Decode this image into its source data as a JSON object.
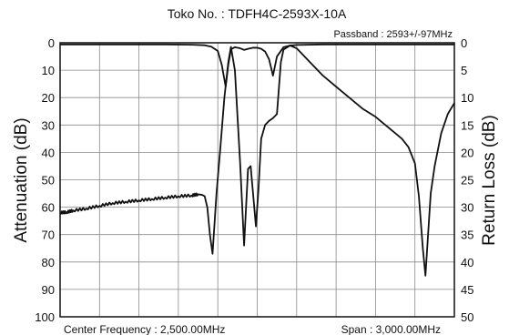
{
  "chart_data": {
    "type": "line",
    "title": "Toko No. : TDFH4C-2593X-10A",
    "subtitle": "Passband : 2593+/-97MHz",
    "ylabel_left": "Attenuation (dB)",
    "ylabel_right": "Return Loss (dB)",
    "footer_left": "Center Frequency : 2,500.00MHz",
    "footer_right": "Span : 3,000.00MHz",
    "grid": true,
    "x_range_mhz": [
      1000,
      4000
    ],
    "ylim_left": [
      0,
      100
    ],
    "ylim_right": [
      0,
      50
    ],
    "left_ticks": [
      "0",
      "10",
      "20",
      "30",
      "40",
      "50",
      "60",
      "70",
      "80",
      "90",
      "100"
    ],
    "right_ticks": [
      "0",
      "5",
      "10",
      "15",
      "20",
      "25",
      "30",
      "35",
      "40",
      "45",
      "50"
    ],
    "series": [
      {
        "axis": "left",
        "color": "#111111",
        "x": [
          1000,
          1050,
          1100,
          1200,
          1300,
          1400,
          1500,
          1600,
          1700,
          1800,
          1900,
          2000,
          2050,
          2080,
          2100,
          2120,
          2140,
          2160,
          2190,
          2220,
          2250,
          2280,
          2300,
          2330,
          2370,
          2400,
          2430,
          2450,
          2470,
          2490,
          2510,
          2530,
          2560,
          2590,
          2620,
          2650,
          2680,
          2700,
          2750,
          2800,
          2900,
          3000,
          3100,
          3200,
          3300,
          3400,
          3500,
          3600,
          3650,
          3700,
          3730,
          3760,
          3780,
          3800,
          3820,
          3850,
          3900,
          3950,
          4000
        ],
        "y": [
          62,
          61.8,
          61.2,
          60.5,
          59.5,
          58.5,
          58,
          57.5,
          57,
          56.5,
          56,
          55.7,
          55.3,
          55.5,
          56,
          60,
          70,
          77,
          55,
          38,
          20,
          7,
          1.5,
          10,
          44,
          74,
          46,
          45,
          56,
          67,
          53,
          35,
          30,
          28.5,
          27.5,
          26,
          7,
          2.5,
          1,
          2,
          7,
          12,
          16,
          20,
          24,
          27,
          31,
          35,
          38,
          44,
          56,
          75,
          85,
          70,
          55,
          45,
          33,
          26,
          22
        ]
      },
      {
        "axis": "right",
        "color": "#111111",
        "x": [
          1000,
          1200,
          1500,
          1800,
          2000,
          2100,
          2150,
          2200,
          2230,
          2260,
          2280,
          2300,
          2330,
          2370,
          2400,
          2430,
          2470,
          2500,
          2530,
          2560,
          2590,
          2620,
          2650,
          2700,
          2750,
          2800,
          3000,
          3500,
          4000
        ],
        "y": [
          0.3,
          0.3,
          0.3,
          0.3,
          0.35,
          0.45,
          0.7,
          1.5,
          4,
          8,
          4,
          1.2,
          0.8,
          1,
          1.3,
          1.1,
          0.9,
          0.9,
          1.1,
          1.6,
          3,
          6,
          2.5,
          0.8,
          0.5,
          0.4,
          0.3,
          0.3,
          0.3
        ]
      }
    ]
  }
}
